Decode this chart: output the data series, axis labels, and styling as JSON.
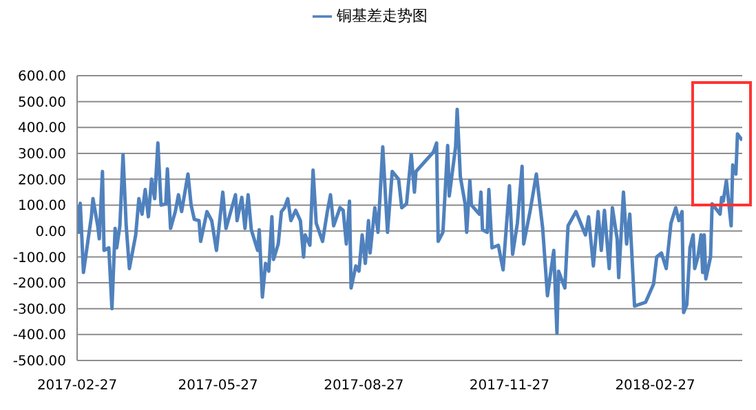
{
  "chart_data": {
    "type": "line",
    "legend": "top",
    "grid": "y",
    "marker": "none",
    "line_style": "solid",
    "xlim": [
      "2017-02-27",
      "2018-04-23"
    ],
    "xticks": [
      "2017-02-27",
      "2017-05-27",
      "2017-08-27",
      "2017-11-27",
      "2018-02-27"
    ],
    "ylim": [
      -500,
      600
    ],
    "yticks": [
      {
        "value": -500,
        "label": "-500.00"
      },
      {
        "value": -400,
        "label": "-400.00"
      },
      {
        "value": -300,
        "label": "-300.00"
      },
      {
        "value": -200,
        "label": "-200.00"
      },
      {
        "value": -100,
        "label": "-100.00"
      },
      {
        "value": 0,
        "label": "0.00"
      },
      {
        "value": 100,
        "label": "100.00"
      },
      {
        "value": 200,
        "label": "200.00"
      },
      {
        "value": 300,
        "label": "300.00"
      },
      {
        "value": 400,
        "label": "400.00"
      },
      {
        "value": 500,
        "label": "500.00"
      },
      {
        "value": 600,
        "label": "600.00"
      }
    ],
    "x": [
      "2017-02-27",
      "2017-02-28",
      "2017-03-01",
      "2017-03-03",
      "2017-03-06",
      "2017-03-08",
      "2017-03-09",
      "2017-03-12",
      "2017-03-13",
      "2017-03-15",
      "2017-03-16",
      "2017-03-19",
      "2017-03-21",
      "2017-03-23",
      "2017-03-24",
      "2017-03-26",
      "2017-03-28",
      "2017-03-30",
      "2017-04-01",
      "2017-04-05",
      "2017-04-07",
      "2017-04-09",
      "2017-04-11",
      "2017-04-13",
      "2017-04-15",
      "2017-04-17",
      "2017-04-19",
      "2017-04-21",
      "2017-04-24",
      "2017-04-25",
      "2017-04-27",
      "2017-04-30",
      "2017-05-02",
      "2017-05-04",
      "2017-05-08",
      "2017-05-10",
      "2017-05-12",
      "2017-05-15",
      "2017-05-16",
      "2017-05-20",
      "2017-05-23",
      "2017-05-26",
      "2017-05-30",
      "2017-06-01",
      "2017-06-04",
      "2017-06-07",
      "2017-06-08",
      "2017-06-11",
      "2017-06-13",
      "2017-06-15",
      "2017-06-17",
      "2017-06-21",
      "2017-06-22",
      "2017-06-24",
      "2017-06-26",
      "2017-06-28",
      "2017-06-30",
      "2017-07-01",
      "2017-07-04",
      "2017-07-06",
      "2017-07-08",
      "2017-07-10",
      "2017-07-12",
      "2017-07-15",
      "2017-07-18",
      "2017-07-20",
      "2017-07-21",
      "2017-07-24",
      "2017-07-26",
      "2017-07-28",
      "2017-08-01",
      "2017-08-04",
      "2017-08-06",
      "2017-08-08",
      "2017-08-12",
      "2017-08-14",
      "2017-08-16",
      "2017-08-18",
      "2017-08-19",
      "2017-08-22",
      "2017-08-24",
      "2017-08-26",
      "2017-08-28",
      "2017-08-30",
      "2017-08-31",
      "2017-09-03",
      "2017-09-05",
      "2017-09-08",
      "2017-09-11",
      "2017-09-14",
      "2017-09-18",
      "2017-09-20",
      "2017-09-23",
      "2017-09-26",
      "2017-09-28",
      "2017-09-29",
      "2017-10-10",
      "2017-10-12",
      "2017-10-13",
      "2017-10-16",
      "2017-10-19",
      "2017-10-20",
      "2017-10-24",
      "2017-10-25",
      "2017-10-27",
      "2017-10-30",
      "2017-10-31",
      "2017-11-02",
      "2017-11-03",
      "2017-11-08",
      "2017-11-09",
      "2017-11-10",
      "2017-11-13",
      "2017-11-14",
      "2017-11-16",
      "2017-11-20",
      "2017-11-23",
      "2017-11-27",
      "2017-11-29",
      "2017-12-02",
      "2017-12-05",
      "2017-12-06",
      "2017-12-10",
      "2017-12-14",
      "2017-12-18",
      "2017-12-21",
      "2017-12-25",
      "2017-12-27",
      "2017-12-28",
      "2018-01-01",
      "2018-01-03",
      "2018-01-08",
      "2018-01-11",
      "2018-01-14",
      "2018-01-16",
      "2018-01-19",
      "2018-01-22",
      "2018-01-24",
      "2018-01-26",
      "2018-01-29",
      "2018-01-31",
      "2018-02-03",
      "2018-02-04",
      "2018-02-07",
      "2018-02-09",
      "2018-02-11",
      "2018-02-14",
      "2018-02-21",
      "2018-02-26",
      "2018-02-28",
      "2018-03-03",
      "2018-03-06",
      "2018-03-09",
      "2018-03-12",
      "2018-03-14",
      "2018-03-16",
      "2018-03-17",
      "2018-03-19",
      "2018-03-21",
      "2018-03-23",
      "2018-03-24",
      "2018-03-26",
      "2018-03-28",
      "2018-03-29",
      "2018-03-30",
      "2018-03-31",
      "2018-04-03",
      "2018-04-04",
      "2018-04-09",
      "2018-04-10",
      "2018-04-11",
      "2018-04-13",
      "2018-04-16",
      "2018-04-17",
      "2018-04-19",
      "2018-04-20",
      "2018-04-23"
    ],
    "series": [
      {
        "name": "铜基差走势图",
        "color": "#4f81bd",
        "values": [
          100,
          -5,
          107,
          -160,
          -30,
          55,
          125,
          20,
          -30,
          230,
          -75,
          -65,
          -300,
          10,
          -65,
          20,
          295,
          20,
          -145,
          -15,
          125,
          65,
          160,
          55,
          200,
          125,
          340,
          100,
          105,
          240,
          10,
          75,
          140,
          75,
          220,
          100,
          45,
          40,
          -40,
          75,
          40,
          -75,
          150,
          10,
          75,
          140,
          40,
          130,
          10,
          140,
          5,
          -75,
          5,
          -255,
          -125,
          -155,
          55,
          -110,
          -50,
          75,
          90,
          125,
          40,
          80,
          40,
          -100,
          -15,
          -55,
          235,
          30,
          -40,
          75,
          140,
          20,
          90,
          80,
          -50,
          115,
          -220,
          -135,
          -155,
          -15,
          -125,
          40,
          -85,
          90,
          -5,
          325,
          -5,
          230,
          200,
          90,
          105,
          295,
          150,
          230,
          305,
          340,
          -40,
          -5,
          330,
          135,
          325,
          470,
          210,
          105,
          -5,
          195,
          100,
          65,
          150,
          5,
          -5,
          160,
          -65,
          -55,
          -150,
          175,
          -90,
          30,
          250,
          -50,
          75,
          220,
          10,
          -250,
          -75,
          -395,
          -155,
          -220,
          20,
          75,
          30,
          -15,
          55,
          -135,
          75,
          -75,
          80,
          -145,
          90,
          -30,
          -180,
          150,
          -50,
          65,
          -290,
          -275,
          -205,
          -100,
          -85,
          -145,
          30,
          90,
          40,
          75,
          -315,
          -285,
          -65,
          -15,
          -145,
          -100,
          -15,
          -160,
          -15,
          -185,
          -100,
          105,
          65,
          130,
          115,
          195,
          20,
          255,
          220,
          375,
          350
        ]
      }
    ]
  }
}
